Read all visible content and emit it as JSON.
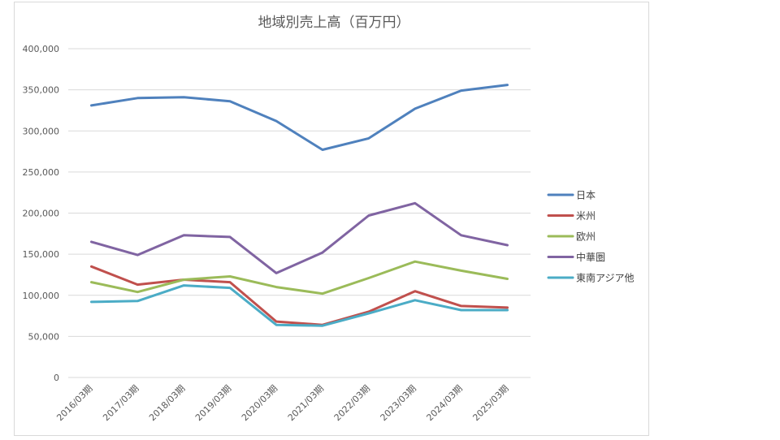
{
  "chart_data": {
    "type": "line",
    "title": "地域別売上高（百万円）",
    "xlabel": "",
    "ylabel": "",
    "categories": [
      "2016/03期",
      "2017/03期",
      "2018/03期",
      "2019/03期",
      "2020/03期",
      "2021/03期",
      "2022/03期",
      "2023/03期",
      "2024/03期",
      "2025/03期"
    ],
    "ylim": [
      0,
      400000
    ],
    "yticks": [
      0,
      50000,
      100000,
      150000,
      200000,
      250000,
      300000,
      350000,
      400000
    ],
    "ytick_labels": [
      "0",
      "50,000",
      "100,000",
      "150,000",
      "200,000",
      "250,000",
      "300,000",
      "350,000",
      "400,000"
    ],
    "grid": true,
    "legend_position": "right",
    "series": [
      {
        "name": "日本",
        "color": "#4f81bd",
        "values": [
          331000,
          340000,
          341000,
          336000,
          312000,
          277000,
          291000,
          327000,
          349000,
          356000
        ]
      },
      {
        "name": "米州",
        "color": "#c0504d",
        "values": [
          135000,
          113000,
          119000,
          116000,
          68000,
          64000,
          80000,
          105000,
          87000,
          85000
        ]
      },
      {
        "name": "欧州",
        "color": "#9bbb59",
        "values": [
          116000,
          104000,
          119000,
          123000,
          110000,
          102000,
          121000,
          141000,
          130000,
          120000
        ]
      },
      {
        "name": "中華圏",
        "color": "#8064a2",
        "values": [
          165000,
          149000,
          173000,
          171000,
          127000,
          152000,
          197000,
          212000,
          173000,
          161000
        ]
      },
      {
        "name": "東南アジア他",
        "color": "#4bacc6",
        "values": [
          92000,
          93000,
          112000,
          109000,
          64000,
          63000,
          78000,
          94000,
          82000,
          82000
        ]
      }
    ]
  }
}
